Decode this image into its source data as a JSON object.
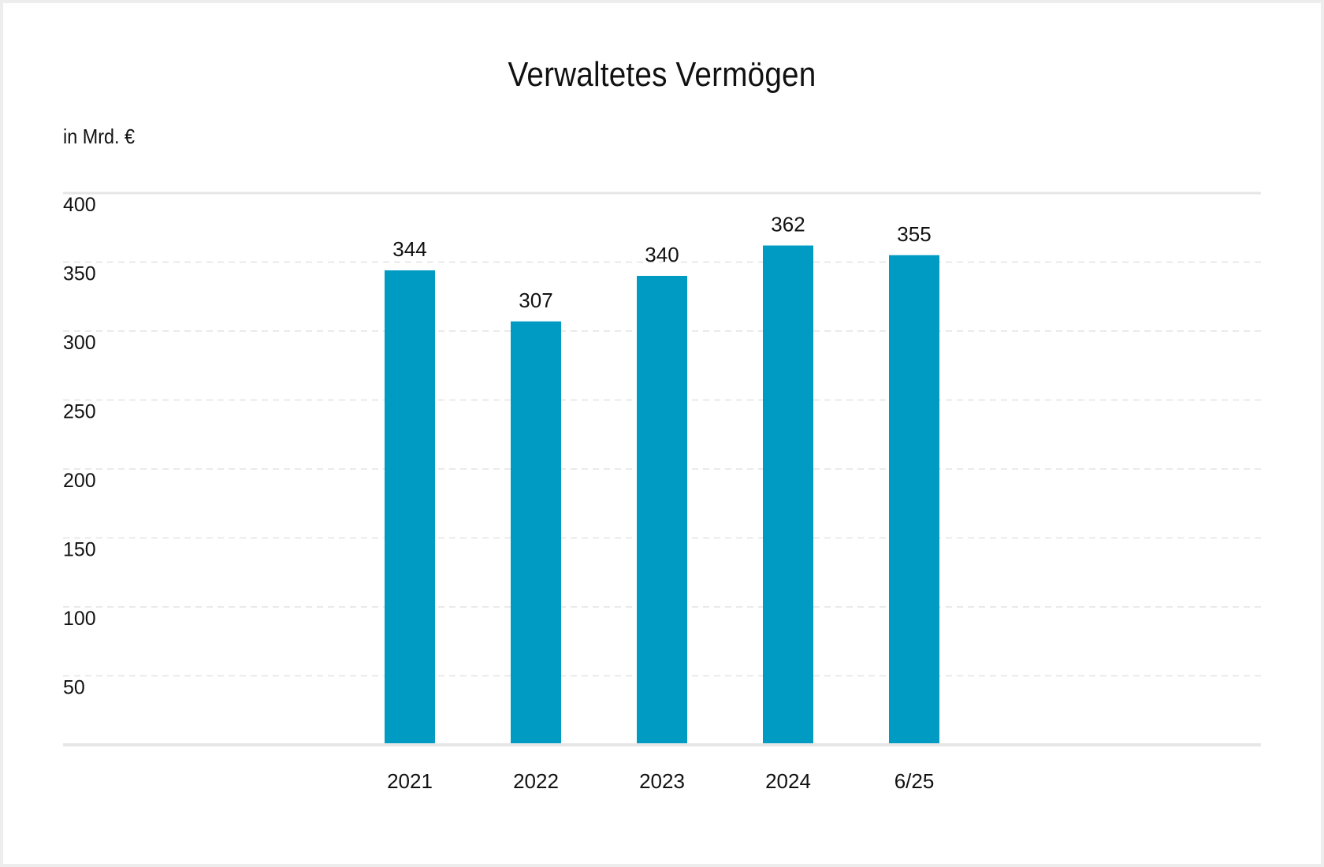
{
  "chart_data": {
    "type": "bar",
    "title": "Verwaltetes Vermögen",
    "unit_label": "in Mrd. €",
    "categories": [
      "2021",
      "2022",
      "2023",
      "2024",
      "6/25"
    ],
    "values": [
      344,
      307,
      340,
      362,
      355
    ],
    "data_labels": [
      "344",
      "307",
      "340",
      "362",
      "355"
    ],
    "y_ticks": [
      "50",
      "100",
      "150",
      "200",
      "250",
      "300",
      "350",
      "400"
    ],
    "ylim": [
      0,
      400
    ],
    "grid": true,
    "grid_style": "dashed",
    "legend": "none",
    "bar_color": "#009bc2"
  }
}
